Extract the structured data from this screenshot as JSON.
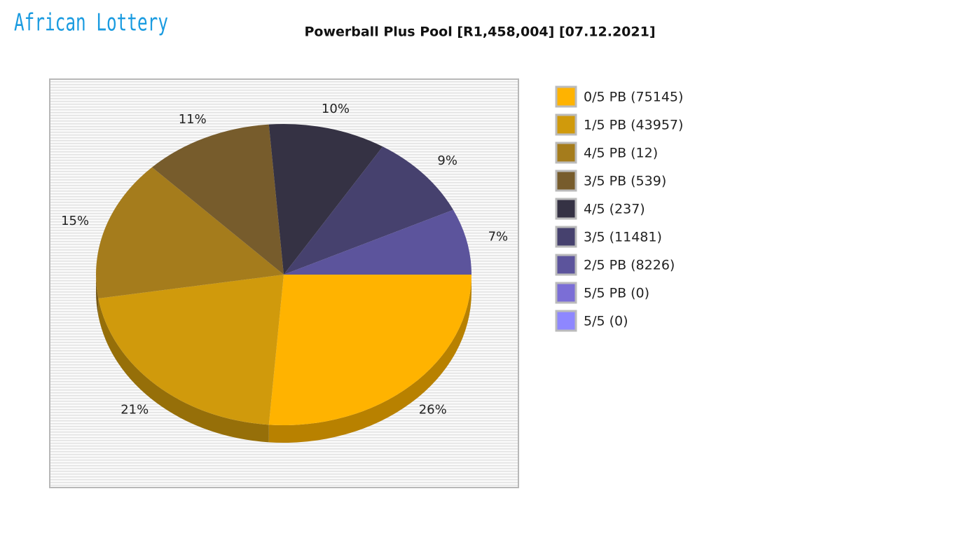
{
  "logo": "African Lottery",
  "chart_data": {
    "type": "pie",
    "title": "Powerball Plus Pool [R1,458,004] [07.12.2021]",
    "categories": [
      "0/5 PB (75145)",
      "1/5 PB (43957)",
      "4/5 PB (12)",
      "3/5 PB (539)",
      "4/5 (237)",
      "3/5 (11481)",
      "2/5 PB (8226)",
      "5/5 PB (0)",
      "5/5 (0)"
    ],
    "values": [
      26,
      21,
      15,
      11,
      10,
      9,
      7,
      0,
      0
    ],
    "colors": [
      "#FFB300",
      "#D09A0C",
      "#A57C1C",
      "#775C2C",
      "#353244",
      "#46416E",
      "#5C549C",
      "#7B6ED6",
      "#8E87FF"
    ],
    "legend": "right"
  }
}
